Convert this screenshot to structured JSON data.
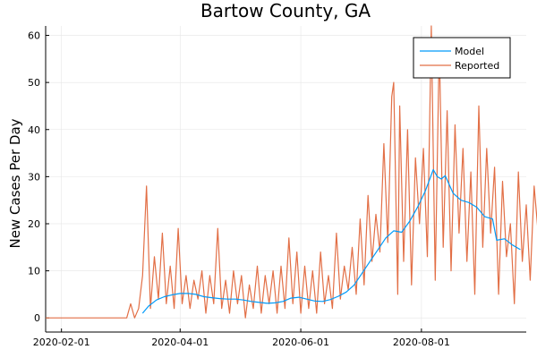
{
  "chart_data": {
    "type": "line",
    "title": "Bartow County, GA",
    "xlabel": "",
    "ylabel": "New Cases Per Day",
    "x_ticks": [
      "2020-02-01",
      "2020-04-01",
      "2020-06-01",
      "2020-08-01"
    ],
    "y_ticks": [
      0,
      10,
      20,
      30,
      40,
      50,
      60
    ],
    "xlim": [
      "2020-01-24",
      "2020-09-23"
    ],
    "ylim": [
      -3,
      62
    ],
    "grid": true,
    "legend_position": "top-right",
    "series": [
      {
        "name": "Model",
        "color": "#009AF9",
        "points": [
          [
            "2020-03-13",
            1.0
          ],
          [
            "2020-03-16",
            2.5
          ],
          [
            "2020-03-20",
            3.8
          ],
          [
            "2020-03-24",
            4.5
          ],
          [
            "2020-03-28",
            4.9
          ],
          [
            "2020-04-01",
            5.2
          ],
          [
            "2020-04-05",
            5.2
          ],
          [
            "2020-04-09",
            5.0
          ],
          [
            "2020-04-13",
            4.5
          ],
          [
            "2020-04-17",
            4.3
          ],
          [
            "2020-04-21",
            4.1
          ],
          [
            "2020-04-25",
            4.0
          ],
          [
            "2020-04-29",
            4.0
          ],
          [
            "2020-05-03",
            3.8
          ],
          [
            "2020-05-07",
            3.5
          ],
          [
            "2020-05-11",
            3.3
          ],
          [
            "2020-05-15",
            3.1
          ],
          [
            "2020-05-19",
            3.2
          ],
          [
            "2020-05-23",
            3.5
          ],
          [
            "2020-05-27",
            4.2
          ],
          [
            "2020-05-31",
            4.4
          ],
          [
            "2020-06-04",
            4.0
          ],
          [
            "2020-06-08",
            3.6
          ],
          [
            "2020-06-12",
            3.5
          ],
          [
            "2020-06-16",
            3.9
          ],
          [
            "2020-06-20",
            4.6
          ],
          [
            "2020-06-24",
            5.5
          ],
          [
            "2020-06-28",
            7.0
          ],
          [
            "2020-07-02",
            9.5
          ],
          [
            "2020-07-06",
            12.0
          ],
          [
            "2020-07-10",
            14.5
          ],
          [
            "2020-07-14",
            17.0
          ],
          [
            "2020-07-18",
            18.5
          ],
          [
            "2020-07-22",
            18.2
          ],
          [
            "2020-07-26",
            20.5
          ],
          [
            "2020-07-30",
            23.5
          ],
          [
            "2020-08-03",
            27.0
          ],
          [
            "2020-08-07",
            31.5
          ],
          [
            "2020-08-09",
            30.0
          ],
          [
            "2020-08-11",
            29.5
          ],
          [
            "2020-08-13",
            30.2
          ],
          [
            "2020-08-17",
            26.5
          ],
          [
            "2020-08-21",
            25.0
          ],
          [
            "2020-08-25",
            24.5
          ],
          [
            "2020-08-29",
            23.5
          ],
          [
            "2020-09-02",
            21.5
          ],
          [
            "2020-09-06",
            21.0
          ],
          [
            "2020-09-08",
            16.5
          ],
          [
            "2020-09-12",
            16.8
          ],
          [
            "2020-09-16",
            15.5
          ],
          [
            "2020-09-20",
            14.5
          ]
        ]
      },
      {
        "name": "Reported",
        "color": "#E26F46",
        "points": [
          [
            "2020-01-24",
            0
          ],
          [
            "2020-03-05",
            0
          ],
          [
            "2020-03-07",
            3
          ],
          [
            "2020-03-09",
            0
          ],
          [
            "2020-03-11",
            2
          ],
          [
            "2020-03-13",
            9
          ],
          [
            "2020-03-15",
            28
          ],
          [
            "2020-03-17",
            2
          ],
          [
            "2020-03-19",
            13
          ],
          [
            "2020-03-21",
            4
          ],
          [
            "2020-03-23",
            18
          ],
          [
            "2020-03-25",
            3
          ],
          [
            "2020-03-27",
            11
          ],
          [
            "2020-03-29",
            2
          ],
          [
            "2020-03-31",
            19
          ],
          [
            "2020-04-02",
            3
          ],
          [
            "2020-04-04",
            9
          ],
          [
            "2020-04-06",
            2
          ],
          [
            "2020-04-08",
            8
          ],
          [
            "2020-04-10",
            4
          ],
          [
            "2020-04-12",
            10
          ],
          [
            "2020-04-14",
            1
          ],
          [
            "2020-04-16",
            9
          ],
          [
            "2020-04-18",
            3
          ],
          [
            "2020-04-20",
            19
          ],
          [
            "2020-04-22",
            2
          ],
          [
            "2020-04-24",
            8
          ],
          [
            "2020-04-26",
            1
          ],
          [
            "2020-04-28",
            10
          ],
          [
            "2020-04-30",
            3
          ],
          [
            "2020-05-02",
            9
          ],
          [
            "2020-05-04",
            0
          ],
          [
            "2020-05-06",
            7
          ],
          [
            "2020-05-08",
            2
          ],
          [
            "2020-05-10",
            11
          ],
          [
            "2020-05-12",
            1
          ],
          [
            "2020-05-14",
            9
          ],
          [
            "2020-05-16",
            3
          ],
          [
            "2020-05-18",
            10
          ],
          [
            "2020-05-20",
            1
          ],
          [
            "2020-05-22",
            11
          ],
          [
            "2020-05-24",
            2
          ],
          [
            "2020-05-26",
            17
          ],
          [
            "2020-05-28",
            3
          ],
          [
            "2020-05-30",
            14
          ],
          [
            "2020-06-01",
            1
          ],
          [
            "2020-06-03",
            11
          ],
          [
            "2020-06-05",
            2
          ],
          [
            "2020-06-07",
            10
          ],
          [
            "2020-06-09",
            1
          ],
          [
            "2020-06-11",
            14
          ],
          [
            "2020-06-13",
            3
          ],
          [
            "2020-06-15",
            9
          ],
          [
            "2020-06-17",
            2
          ],
          [
            "2020-06-19",
            18
          ],
          [
            "2020-06-21",
            4
          ],
          [
            "2020-06-23",
            11
          ],
          [
            "2020-06-25",
            6
          ],
          [
            "2020-06-27",
            15
          ],
          [
            "2020-06-29",
            5
          ],
          [
            "2020-07-01",
            21
          ],
          [
            "2020-07-03",
            7
          ],
          [
            "2020-07-05",
            26
          ],
          [
            "2020-07-07",
            12
          ],
          [
            "2020-07-09",
            22
          ],
          [
            "2020-07-11",
            14
          ],
          [
            "2020-07-13",
            37
          ],
          [
            "2020-07-15",
            16
          ],
          [
            "2020-07-17",
            47
          ],
          [
            "2020-07-18",
            50
          ],
          [
            "2020-07-20",
            5
          ],
          [
            "2020-07-21",
            45
          ],
          [
            "2020-07-23",
            12
          ],
          [
            "2020-07-25",
            40
          ],
          [
            "2020-07-27",
            7
          ],
          [
            "2020-07-29",
            34
          ],
          [
            "2020-07-31",
            20
          ],
          [
            "2020-08-02",
            36
          ],
          [
            "2020-08-04",
            13
          ],
          [
            "2020-08-06",
            62
          ],
          [
            "2020-08-08",
            8
          ],
          [
            "2020-08-10",
            58
          ],
          [
            "2020-08-12",
            15
          ],
          [
            "2020-08-14",
            44
          ],
          [
            "2020-08-16",
            10
          ],
          [
            "2020-08-18",
            41
          ],
          [
            "2020-08-20",
            18
          ],
          [
            "2020-08-22",
            36
          ],
          [
            "2020-08-24",
            12
          ],
          [
            "2020-08-26",
            31
          ],
          [
            "2020-08-28",
            5
          ],
          [
            "2020-08-30",
            45
          ],
          [
            "2020-09-01",
            15
          ],
          [
            "2020-09-03",
            36
          ],
          [
            "2020-09-05",
            18
          ],
          [
            "2020-09-07",
            32
          ],
          [
            "2020-09-09",
            5
          ],
          [
            "2020-09-11",
            29
          ],
          [
            "2020-09-13",
            13
          ],
          [
            "2020-09-15",
            20
          ],
          [
            "2020-09-17",
            3
          ],
          [
            "2020-09-19",
            31
          ],
          [
            "2020-09-21",
            12
          ],
          [
            "2020-09-23",
            24
          ],
          [
            "2020-09-25",
            8
          ],
          [
            "2020-09-27",
            28
          ],
          [
            "2020-09-29",
            18
          ],
          [
            "2020-10-01",
            11
          ],
          [
            "2020-10-03",
            7
          ]
        ]
      }
    ]
  }
}
